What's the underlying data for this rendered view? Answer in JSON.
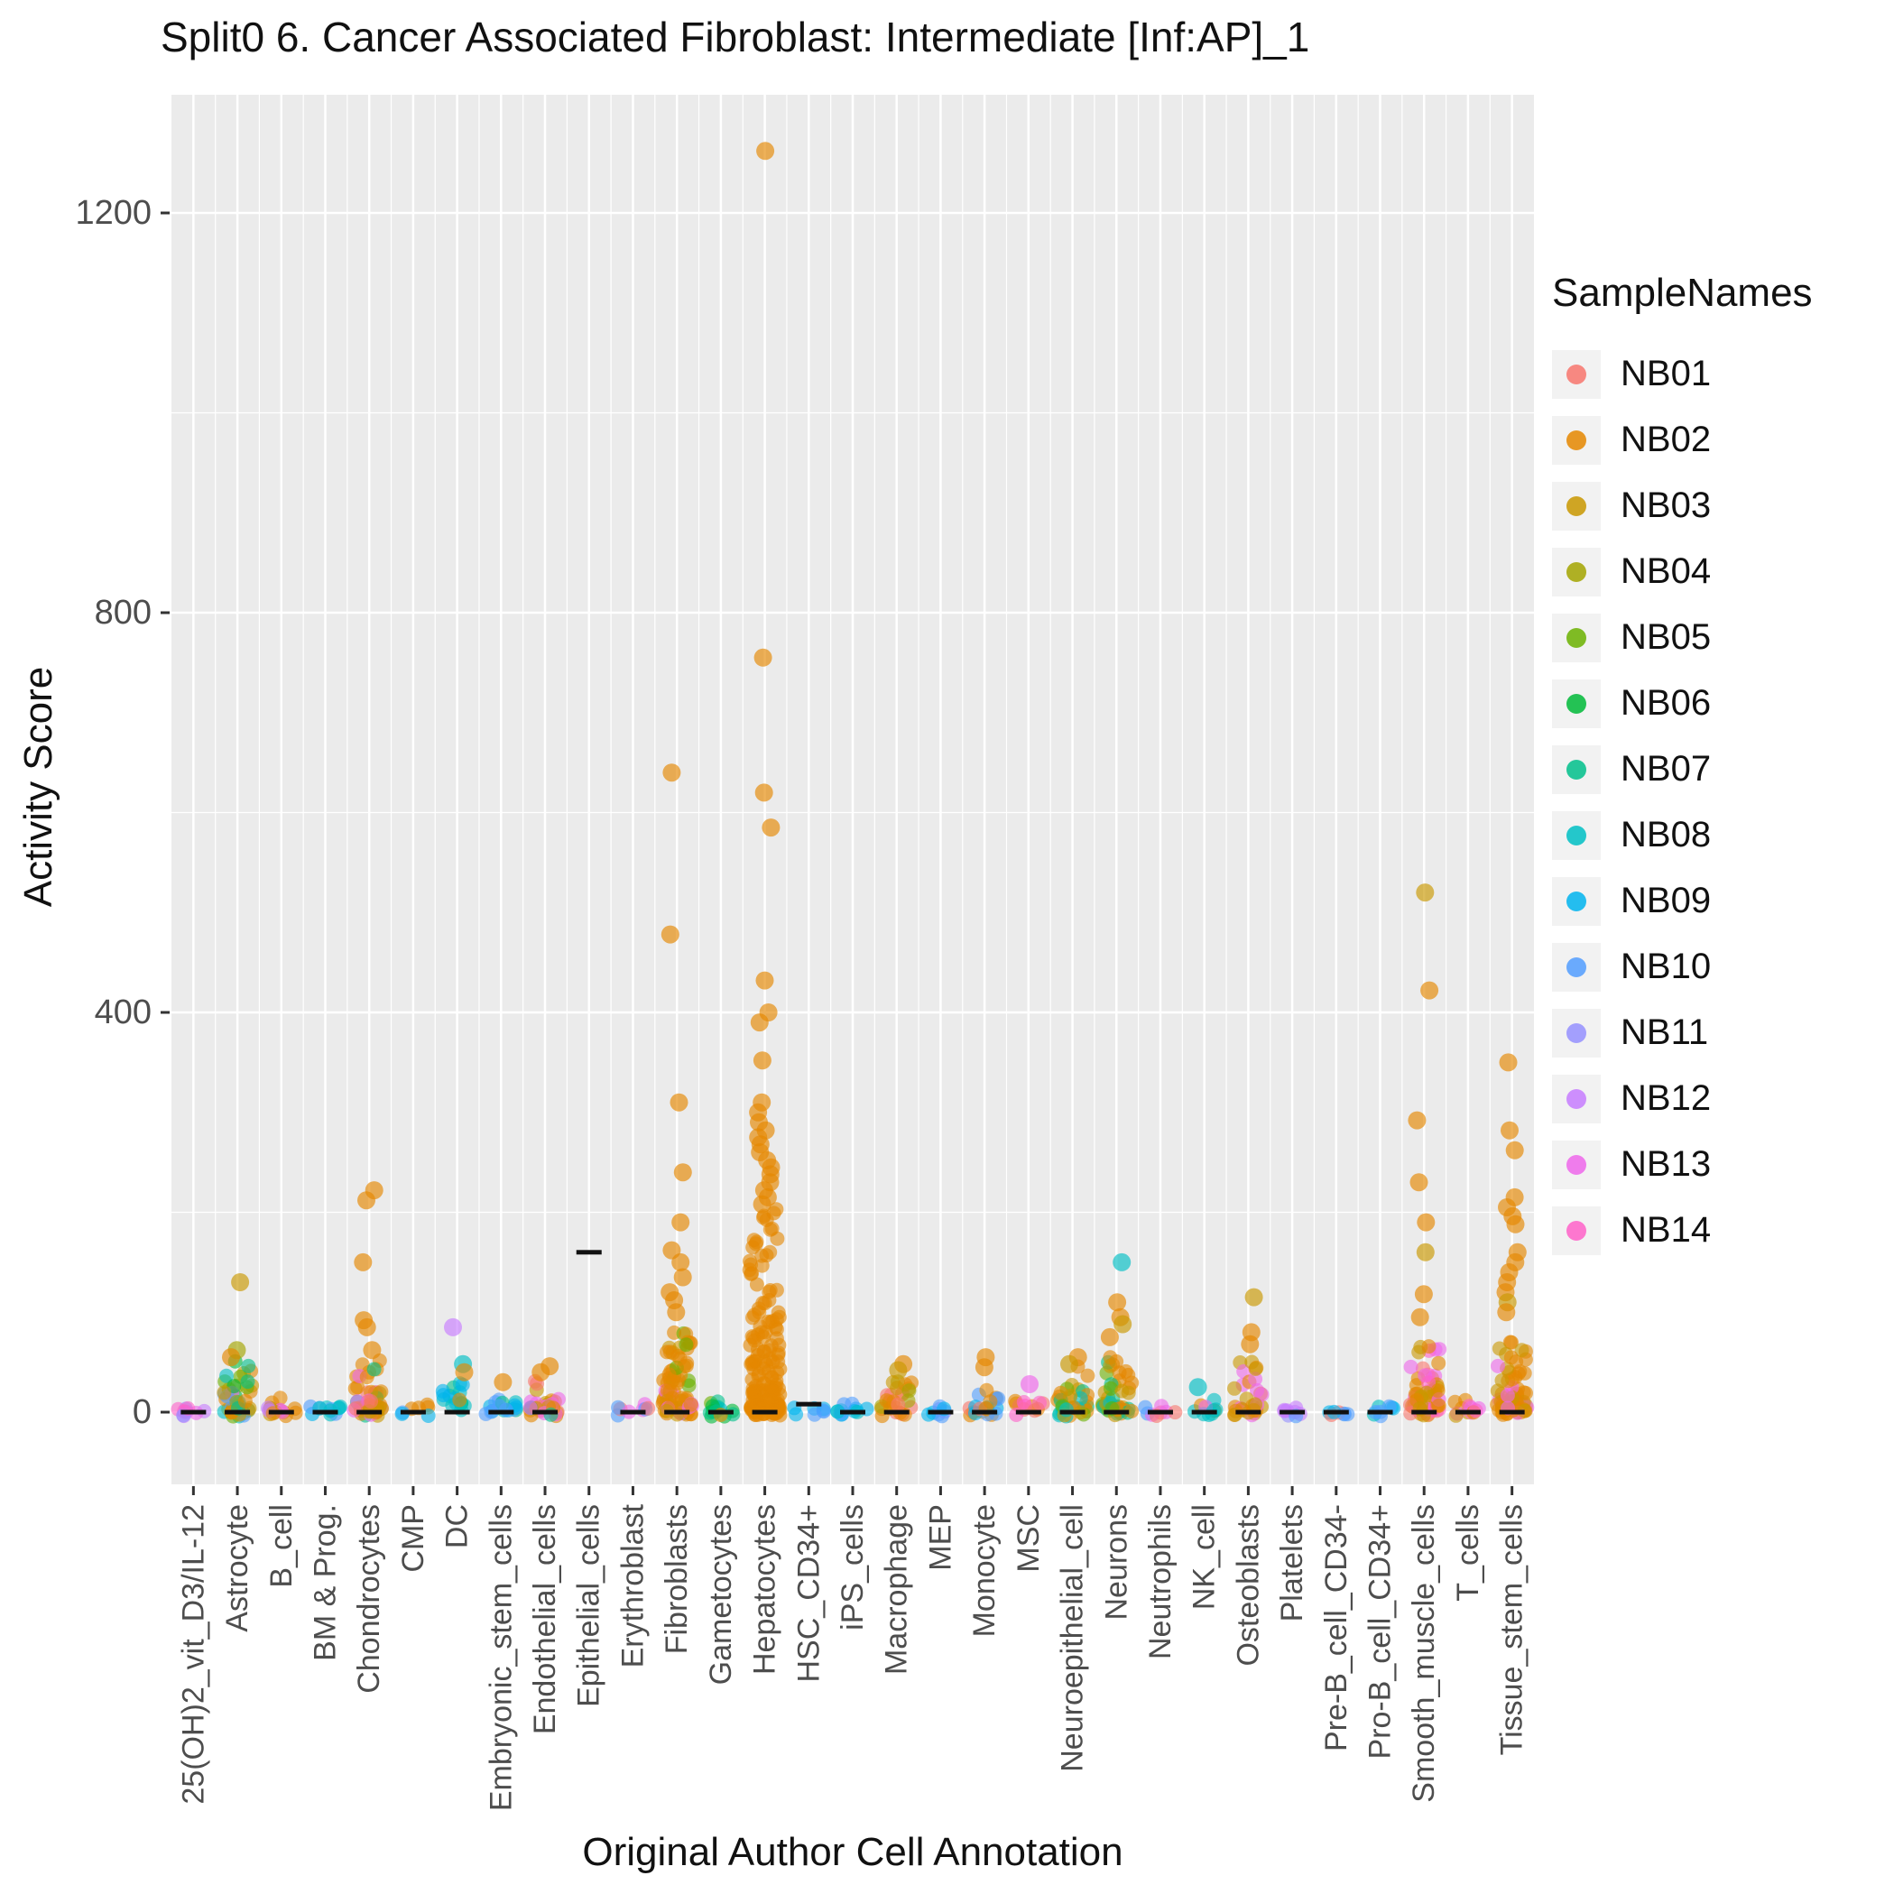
{
  "title": "Split0 6. Cancer Associated Fibroblast: Intermediate [Inf:AP]_1",
  "axes": {
    "x_label": "Original Author Cell Annotation",
    "y_label": "Activity Score",
    "y_ticks": [
      0,
      400,
      800,
      1200
    ],
    "y_minor": [
      200,
      600,
      1000
    ]
  },
  "panel": {
    "bg": "#EBEBEB",
    "grid": "#FFFFFF",
    "tick_color": "#333333",
    "tick_label_color": "#4D4D4D"
  },
  "legend": {
    "title": "SampleNames",
    "items": [
      {
        "label": "NB01",
        "color": "#F8766D"
      },
      {
        "label": "NB02",
        "color": "#E58700"
      },
      {
        "label": "NB03",
        "color": "#C99800"
      },
      {
        "label": "NB04",
        "color": "#A3A500"
      },
      {
        "label": "NB05",
        "color": "#6BB100"
      },
      {
        "label": "NB06",
        "color": "#00BA38"
      },
      {
        "label": "NB07",
        "color": "#00C08B"
      },
      {
        "label": "NB08",
        "color": "#00BFC4"
      },
      {
        "label": "NB09",
        "color": "#00B4EF"
      },
      {
        "label": "NB10",
        "color": "#529EFF"
      },
      {
        "label": "NB11",
        "color": "#9590FF"
      },
      {
        "label": "NB12",
        "color": "#C77CFF"
      },
      {
        "label": "NB13",
        "color": "#EF67EB"
      },
      {
        "label": "NB14",
        "color": "#FF61C9"
      }
    ]
  },
  "chart_data": {
    "type": "scatter",
    "title": "Split0 6. Cancer Associated Fibroblast: Intermediate [Inf:AP]_1",
    "xlabel": "Original Author Cell Annotation",
    "ylabel": "Activity Score",
    "ylim": [
      -72,
      1318
    ],
    "y_ticks": [
      0,
      400,
      800,
      1200
    ],
    "legend_position": "right",
    "categories": [
      {
        "label": "25(OH)2_vit_D3/IL-12",
        "bar": 0,
        "cluster": {
          "n": 9,
          "max": 5,
          "samples": [
            "NB13",
            "NB13",
            "NB14",
            "NB12",
            "NB11"
          ]
        },
        "outliers": []
      },
      {
        "label": "Astrocyte",
        "bar": 0,
        "cluster": {
          "n": 42,
          "max": 48,
          "samples": [
            "NB02",
            "NB02",
            "NB03",
            "NB03",
            "NB04",
            "NB05",
            "NB06",
            "NB08",
            "NB10",
            "NB13",
            "NB07",
            "NB02"
          ]
        },
        "outliers": [
          [
            130,
            "NB03"
          ],
          [
            62,
            "NB04"
          ],
          [
            55,
            "NB02"
          ]
        ]
      },
      {
        "label": "B_cell",
        "bar": 0,
        "cluster": {
          "n": 16,
          "max": 12,
          "samples": [
            "NB03",
            "NB04",
            "NB13",
            "NB02",
            "NB12"
          ]
        },
        "outliers": []
      },
      {
        "label": "BM & Prog.",
        "bar": 0,
        "cluster": {
          "n": 12,
          "max": 5,
          "samples": [
            "NB09",
            "NB10",
            "NB08"
          ]
        },
        "outliers": []
      },
      {
        "label": "Chondrocytes",
        "bar": 0,
        "cluster": {
          "n": 48,
          "max": 52,
          "samples": [
            "NB02",
            "NB02",
            "NB02",
            "NB03",
            "NB01",
            "NB13",
            "NB07",
            "NB02"
          ]
        },
        "outliers": [
          [
            222,
            "NB02"
          ],
          [
            212,
            "NB02"
          ],
          [
            150,
            "NB02"
          ],
          [
            92,
            "NB02"
          ],
          [
            85,
            "NB02"
          ],
          [
            62,
            "NB02"
          ]
        ]
      },
      {
        "label": "CMP",
        "bar": 0,
        "cluster": {
          "n": 7,
          "max": 5,
          "samples": [
            "NB09",
            "NB10",
            "NB02"
          ]
        },
        "outliers": []
      },
      {
        "label": "DC",
        "bar": 0,
        "cluster": {
          "n": 16,
          "max": 32,
          "samples": [
            "NB08",
            "NB02",
            "NB09",
            "NB07"
          ]
        },
        "outliers": [
          [
            85,
            "NB12"
          ],
          [
            48,
            "NB08"
          ],
          [
            40,
            "NB02"
          ]
        ]
      },
      {
        "label": "Embryonic_stem_cells",
        "bar": 0,
        "cluster": {
          "n": 16,
          "max": 10,
          "samples": [
            "NB08",
            "NB09",
            "NB10",
            "NB07"
          ]
        },
        "outliers": [
          [
            30,
            "NB02"
          ]
        ]
      },
      {
        "label": "Endothelial_cells",
        "bar": 0,
        "cluster": {
          "n": 30,
          "max": 35,
          "samples": [
            "NB02",
            "NB02",
            "NB13",
            "NB01",
            "NB07",
            "NB03"
          ]
        },
        "outliers": [
          [
            46,
            "NB02"
          ],
          [
            40,
            "NB02"
          ]
        ]
      },
      {
        "label": "Epithelial_cells",
        "bar": 160,
        "cluster": {
          "n": 0,
          "max": 0,
          "samples": []
        },
        "outliers": []
      },
      {
        "label": "Erythroblast",
        "bar": 0,
        "cluster": {
          "n": 8,
          "max": 5,
          "samples": [
            "NB13",
            "NB14",
            "NB01",
            "NB10"
          ]
        },
        "outliers": []
      },
      {
        "label": "Fibroblasts",
        "bar": 0,
        "cluster": {
          "n": 75,
          "max": 85,
          "samples": [
            "NB02",
            "NB02",
            "NB02",
            "NB02",
            "NB03",
            "NB13",
            "NB05",
            "NB02"
          ]
        },
        "outliers": [
          [
            640,
            "NB02"
          ],
          [
            478,
            "NB02"
          ],
          [
            310,
            "NB02"
          ],
          [
            240,
            "NB02"
          ],
          [
            190,
            "NB02"
          ],
          [
            162,
            "NB02"
          ],
          [
            150,
            "NB02"
          ],
          [
            135,
            "NB02"
          ],
          [
            120,
            "NB02"
          ],
          [
            112,
            "NB02"
          ],
          [
            100,
            "NB02"
          ]
        ]
      },
      {
        "label": "Gametocytes",
        "bar": 0,
        "cluster": {
          "n": 14,
          "max": 8,
          "samples": [
            "NB05",
            "NB06",
            "NB07",
            "NB02",
            "NB08"
          ]
        },
        "outliers": []
      },
      {
        "label": "Hepatocytes",
        "bar": 0,
        "cluster": {
          "n": 160,
          "max": 205,
          "samples": [
            "NB02"
          ]
        },
        "outliers": [
          [
            1262,
            "NB02"
          ],
          [
            755,
            "NB02"
          ],
          [
            620,
            "NB02"
          ],
          [
            585,
            "NB02"
          ],
          [
            432,
            "NB02"
          ],
          [
            400,
            "NB02"
          ],
          [
            390,
            "NB02"
          ],
          [
            352,
            "NB02"
          ],
          [
            310,
            "NB02"
          ],
          [
            300,
            "NB02"
          ],
          [
            290,
            "NB02"
          ],
          [
            282,
            "NB02"
          ],
          [
            275,
            "NB02"
          ],
          [
            268,
            "NB02"
          ],
          [
            260,
            "NB02"
          ],
          [
            252,
            "NB02"
          ],
          [
            245,
            "NB02"
          ],
          [
            238,
            "NB02"
          ],
          [
            230,
            "NB02"
          ],
          [
            222,
            "NB02"
          ],
          [
            215,
            "NB02"
          ],
          [
            208,
            "NB02"
          ]
        ]
      },
      {
        "label": "HSC_CD34+",
        "bar": 8,
        "cluster": {
          "n": 7,
          "max": 5,
          "samples": [
            "NB10",
            "NB09"
          ]
        },
        "outliers": []
      },
      {
        "label": "iPS_cells",
        "bar": 0,
        "cluster": {
          "n": 12,
          "max": 8,
          "samples": [
            "NB09",
            "NB10",
            "NB08"
          ]
        },
        "outliers": []
      },
      {
        "label": "Macrophage",
        "bar": 0,
        "cluster": {
          "n": 26,
          "max": 32,
          "samples": [
            "NB02",
            "NB03",
            "NB02",
            "NB04",
            "NB01"
          ]
        },
        "outliers": [
          [
            48,
            "NB02"
          ],
          [
            42,
            "NB03"
          ]
        ]
      },
      {
        "label": "MEP",
        "bar": 0,
        "cluster": {
          "n": 8,
          "max": 5,
          "samples": [
            "NB10",
            "NB09",
            "NB11"
          ]
        },
        "outliers": []
      },
      {
        "label": "Monocyte",
        "bar": 0,
        "cluster": {
          "n": 20,
          "max": 22,
          "samples": [
            "NB02",
            "NB09",
            "NB10",
            "NB01",
            "NB02"
          ]
        },
        "outliers": [
          [
            55,
            "NB02"
          ],
          [
            45,
            "NB02"
          ]
        ]
      },
      {
        "label": "MSC",
        "bar": 0,
        "cluster": {
          "n": 12,
          "max": 12,
          "samples": [
            "NB13",
            "NB02",
            "NB14",
            "NB01"
          ]
        },
        "outliers": [
          [
            28,
            "NB13"
          ]
        ]
      },
      {
        "label": "Neuroepithelial_cell",
        "bar": 0,
        "cluster": {
          "n": 32,
          "max": 45,
          "samples": [
            "NB02",
            "NB03",
            "NB07",
            "NB05",
            "NB02",
            "NB08"
          ]
        },
        "outliers": [
          [
            55,
            "NB02"
          ],
          [
            48,
            "NB03"
          ]
        ]
      },
      {
        "label": "Neurons",
        "bar": 0,
        "cluster": {
          "n": 45,
          "max": 58,
          "samples": [
            "NB02",
            "NB02",
            "NB07",
            "NB08",
            "NB05",
            "NB03",
            "NB02"
          ]
        },
        "outliers": [
          [
            150,
            "NB08"
          ],
          [
            110,
            "NB02"
          ],
          [
            95,
            "NB02"
          ],
          [
            88,
            "NB03"
          ],
          [
            75,
            "NB02"
          ]
        ]
      },
      {
        "label": "Neutrophils",
        "bar": 0,
        "cluster": {
          "n": 8,
          "max": 4,
          "samples": [
            "NB01",
            "NB10",
            "NB13"
          ]
        },
        "outliers": []
      },
      {
        "label": "NK_cell",
        "bar": 0,
        "cluster": {
          "n": 10,
          "max": 14,
          "samples": [
            "NB08",
            "NB13",
            "NB02"
          ]
        },
        "outliers": [
          [
            25,
            "NB08"
          ]
        ]
      },
      {
        "label": "Osteoblasts",
        "bar": 0,
        "cluster": {
          "n": 30,
          "max": 48,
          "samples": [
            "NB02",
            "NB03",
            "NB02",
            "NB03",
            "NB13"
          ]
        },
        "outliers": [
          [
            115,
            "NB03"
          ],
          [
            80,
            "NB02"
          ],
          [
            68,
            "NB02"
          ]
        ]
      },
      {
        "label": "Platelets",
        "bar": 0,
        "cluster": {
          "n": 8,
          "max": 5,
          "samples": [
            "NB11",
            "NB10",
            "NB12"
          ]
        },
        "outliers": []
      },
      {
        "label": "Pre-B_cell_CD34-",
        "bar": 0,
        "cluster": {
          "n": 7,
          "max": 4,
          "samples": [
            "NB10",
            "NB01",
            "NB09"
          ]
        },
        "outliers": []
      },
      {
        "label": "Pro-B_cell_CD34+",
        "bar": 0,
        "cluster": {
          "n": 8,
          "max": 5,
          "samples": [
            "NB09",
            "NB08",
            "NB10"
          ]
        },
        "outliers": []
      },
      {
        "label": "Smooth_muscle_cells",
        "bar": 0,
        "cluster": {
          "n": 58,
          "max": 70,
          "samples": [
            "NB02",
            "NB02",
            "NB03",
            "NB14",
            "NB13",
            "NB02",
            "NB01"
          ]
        },
        "outliers": [
          [
            520,
            "NB03"
          ],
          [
            422,
            "NB02"
          ],
          [
            292,
            "NB02"
          ],
          [
            230,
            "NB02"
          ],
          [
            190,
            "NB02"
          ],
          [
            160,
            "NB03"
          ],
          [
            118,
            "NB02"
          ],
          [
            95,
            "NB02"
          ]
        ]
      },
      {
        "label": "T_cells",
        "bar": 0,
        "cluster": {
          "n": 12,
          "max": 18,
          "samples": [
            "NB13",
            "NB14",
            "NB03",
            "NB02"
          ]
        },
        "outliers": []
      },
      {
        "label": "Tissue_stem_cells",
        "bar": 0,
        "cluster": {
          "n": 70,
          "max": 78,
          "samples": [
            "NB02",
            "NB02",
            "NB02",
            "NB03",
            "NB13",
            "NB02"
          ]
        },
        "outliers": [
          [
            350,
            "NB02"
          ],
          [
            282,
            "NB02"
          ],
          [
            262,
            "NB02"
          ],
          [
            215,
            "NB02"
          ],
          [
            205,
            "NB02"
          ],
          [
            196,
            "NB02"
          ],
          [
            188,
            "NB02"
          ],
          [
            160,
            "NB02"
          ],
          [
            150,
            "NB02"
          ],
          [
            140,
            "NB02"
          ],
          [
            130,
            "NB02"
          ],
          [
            120,
            "NB02"
          ],
          [
            110,
            "NB03"
          ],
          [
            100,
            "NB02"
          ]
        ]
      }
    ]
  }
}
